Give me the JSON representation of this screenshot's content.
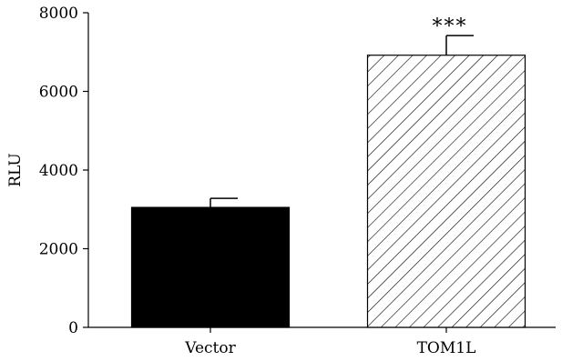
{
  "chart_data": {
    "type": "bar",
    "categories": [
      "Vector",
      "TOM1L"
    ],
    "values": [
      3050,
      6920
    ],
    "errors": [
      230,
      500
    ],
    "bar_patterns": [
      "solid-black",
      "diagonal-hatch"
    ],
    "annotations": [
      "",
      "***"
    ],
    "xlabel": "",
    "ylabel": "RLU",
    "ylim": [
      0,
      8000
    ],
    "yticks": [
      0,
      2000,
      4000,
      6000,
      8000
    ],
    "grid": false,
    "colors": {
      "bar": "#000000",
      "hatch_bg": "#ffffff",
      "axis": "#000000"
    }
  }
}
